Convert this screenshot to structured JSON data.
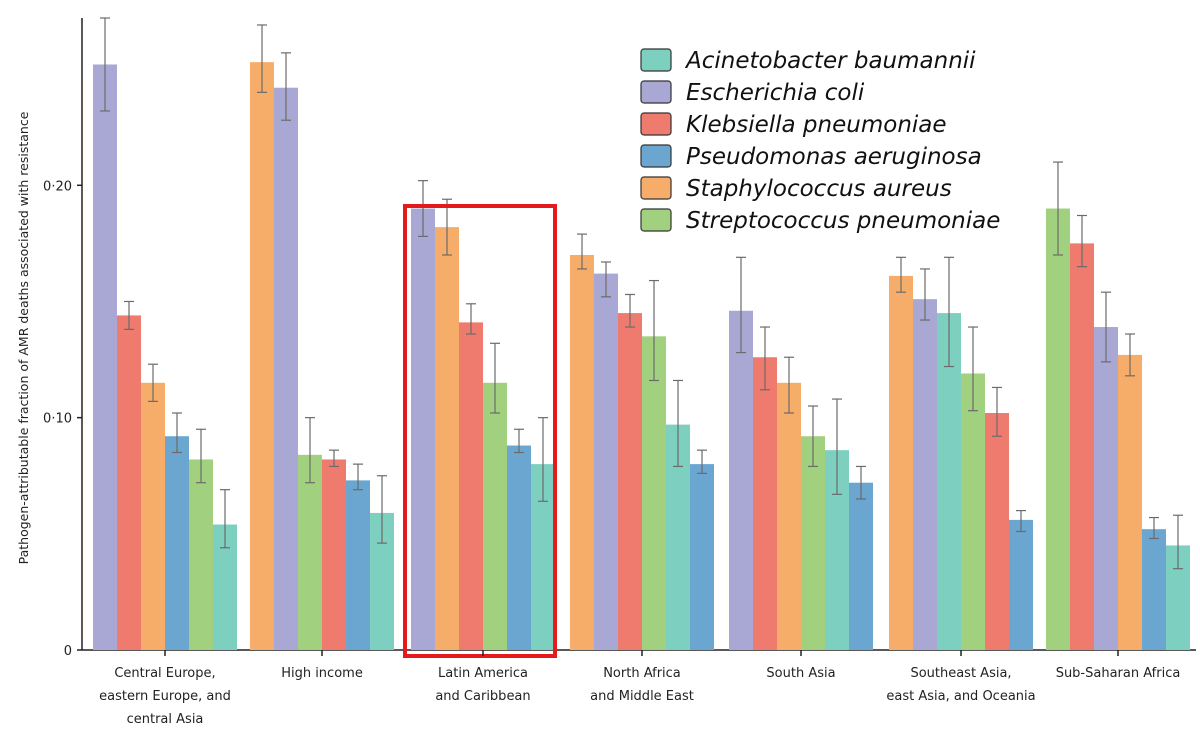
{
  "chart_data": {
    "type": "bar",
    "ylabel": "Pathogen-attributable fraction of AMR deaths associated with resistance",
    "ylim": [
      0,
      0.272
    ],
    "yticks": [
      {
        "value": 0,
        "label": "0"
      },
      {
        "value": 0.1,
        "label": "0·10"
      },
      {
        "value": 0.2,
        "label": "0·20"
      }
    ],
    "legend_position": "top-right",
    "legend": [
      {
        "name": "Acinetobacter baumannii",
        "color": "#7dcfbf"
      },
      {
        "name": "Escherichia coli",
        "color": "#a9a8d4"
      },
      {
        "name": "Klebsiella pneumoniae",
        "color": "#ef7a6e"
      },
      {
        "name": "Pseudomonas aeruginosa",
        "color": "#6aa6cf"
      },
      {
        "name": "Staphylococcus aureus",
        "color": "#f7ad6a"
      },
      {
        "name": "Streptococcus pneumoniae",
        "color": "#a1d07e"
      }
    ],
    "highlight_color": "#e41a1c",
    "highlight_category_index": 2,
    "categories": [
      {
        "label": [
          "Central Europe,",
          "eastern Europe, and",
          "central Asia"
        ],
        "bars": [
          {
            "pathogen": "Escherichia coli",
            "value": 0.252,
            "err": [
              0.232,
              0.272
            ]
          },
          {
            "pathogen": "Klebsiella pneumoniae",
            "value": 0.144,
            "err": [
              0.138,
              0.15
            ]
          },
          {
            "pathogen": "Staphylococcus aureus",
            "value": 0.115,
            "err": [
              0.107,
              0.123
            ]
          },
          {
            "pathogen": "Pseudomonas aeruginosa",
            "value": 0.092,
            "err": [
              0.085,
              0.102
            ]
          },
          {
            "pathogen": "Streptococcus pneumoniae",
            "value": 0.082,
            "err": [
              0.072,
              0.095
            ]
          },
          {
            "pathogen": "Acinetobacter baumannii",
            "value": 0.054,
            "err": [
              0.044,
              0.069
            ]
          }
        ]
      },
      {
        "label": [
          "High income"
        ],
        "bars": [
          {
            "pathogen": "Staphylococcus aureus",
            "value": 0.253,
            "err": [
              0.24,
              0.269
            ]
          },
          {
            "pathogen": "Escherichia coli",
            "value": 0.242,
            "err": [
              0.228,
              0.257
            ]
          },
          {
            "pathogen": "Streptococcus pneumoniae",
            "value": 0.084,
            "err": [
              0.072,
              0.1
            ]
          },
          {
            "pathogen": "Klebsiella pneumoniae",
            "value": 0.082,
            "err": [
              0.079,
              0.086
            ]
          },
          {
            "pathogen": "Pseudomonas aeruginosa",
            "value": 0.073,
            "err": [
              0.069,
              0.08
            ]
          },
          {
            "pathogen": "Acinetobacter baumannii",
            "value": 0.059,
            "err": [
              0.046,
              0.075
            ]
          }
        ]
      },
      {
        "label": [
          "Latin America",
          "and Caribbean"
        ],
        "bars": [
          {
            "pathogen": "Escherichia coli",
            "value": 0.19,
            "err": [
              0.178,
              0.202
            ]
          },
          {
            "pathogen": "Staphylococcus aureus",
            "value": 0.182,
            "err": [
              0.17,
              0.194
            ]
          },
          {
            "pathogen": "Klebsiella pneumoniae",
            "value": 0.141,
            "err": [
              0.136,
              0.149
            ]
          },
          {
            "pathogen": "Streptococcus pneumoniae",
            "value": 0.115,
            "err": [
              0.102,
              0.132
            ]
          },
          {
            "pathogen": "Pseudomonas aeruginosa",
            "value": 0.088,
            "err": [
              0.085,
              0.095
            ]
          },
          {
            "pathogen": "Acinetobacter baumannii",
            "value": 0.08,
            "err": [
              0.064,
              0.1
            ]
          }
        ]
      },
      {
        "label": [
          "North Africa",
          "and Middle East"
        ],
        "bars": [
          {
            "pathogen": "Staphylococcus aureus",
            "value": 0.17,
            "err": [
              0.164,
              0.179
            ]
          },
          {
            "pathogen": "Escherichia coli",
            "value": 0.162,
            "err": [
              0.152,
              0.167
            ]
          },
          {
            "pathogen": "Klebsiella pneumoniae",
            "value": 0.145,
            "err": [
              0.139,
              0.153
            ]
          },
          {
            "pathogen": "Streptococcus pneumoniae",
            "value": 0.135,
            "err": [
              0.116,
              0.159
            ]
          },
          {
            "pathogen": "Acinetobacter baumannii",
            "value": 0.097,
            "err": [
              0.079,
              0.116
            ]
          },
          {
            "pathogen": "Pseudomonas aeruginosa",
            "value": 0.08,
            "err": [
              0.076,
              0.086
            ]
          }
        ]
      },
      {
        "label": [
          "South Asia"
        ],
        "bars": [
          {
            "pathogen": "Escherichia coli",
            "value": 0.146,
            "err": [
              0.128,
              0.169
            ]
          },
          {
            "pathogen": "Klebsiella pneumoniae",
            "value": 0.126,
            "err": [
              0.112,
              0.139
            ]
          },
          {
            "pathogen": "Staphylococcus aureus",
            "value": 0.115,
            "err": [
              0.102,
              0.126
            ]
          },
          {
            "pathogen": "Streptococcus pneumoniae",
            "value": 0.092,
            "err": [
              0.079,
              0.105
            ]
          },
          {
            "pathogen": "Acinetobacter baumannii",
            "value": 0.086,
            "err": [
              0.067,
              0.108
            ]
          },
          {
            "pathogen": "Pseudomonas aeruginosa",
            "value": 0.072,
            "err": [
              0.065,
              0.079
            ]
          }
        ]
      },
      {
        "label": [
          "Southeast Asia,",
          "east Asia, and Oceania"
        ],
        "bars": [
          {
            "pathogen": "Staphylococcus aureus",
            "value": 0.161,
            "err": [
              0.154,
              0.169
            ]
          },
          {
            "pathogen": "Escherichia coli",
            "value": 0.151,
            "err": [
              0.142,
              0.164
            ]
          },
          {
            "pathogen": "Acinetobacter baumannii",
            "value": 0.145,
            "err": [
              0.122,
              0.169
            ]
          },
          {
            "pathogen": "Streptococcus pneumoniae",
            "value": 0.119,
            "err": [
              0.103,
              0.139
            ]
          },
          {
            "pathogen": "Klebsiella pneumoniae",
            "value": 0.102,
            "err": [
              0.092,
              0.113
            ]
          },
          {
            "pathogen": "Pseudomonas aeruginosa",
            "value": 0.056,
            "err": [
              0.051,
              0.06
            ]
          }
        ]
      },
      {
        "label": [
          "Sub-Saharan Africa"
        ],
        "bars": [
          {
            "pathogen": "Streptococcus pneumoniae",
            "value": 0.19,
            "err": [
              0.17,
              0.21
            ]
          },
          {
            "pathogen": "Klebsiella pneumoniae",
            "value": 0.175,
            "err": [
              0.165,
              0.187
            ]
          },
          {
            "pathogen": "Escherichia coli",
            "value": 0.139,
            "err": [
              0.124,
              0.154
            ]
          },
          {
            "pathogen": "Staphylococcus aureus",
            "value": 0.127,
            "err": [
              0.118,
              0.136
            ]
          },
          {
            "pathogen": "Pseudomonas aeruginosa",
            "value": 0.052,
            "err": [
              0.048,
              0.057
            ]
          },
          {
            "pathogen": "Acinetobacter baumannii",
            "value": 0.045,
            "err": [
              0.035,
              0.058
            ]
          }
        ]
      }
    ]
  }
}
